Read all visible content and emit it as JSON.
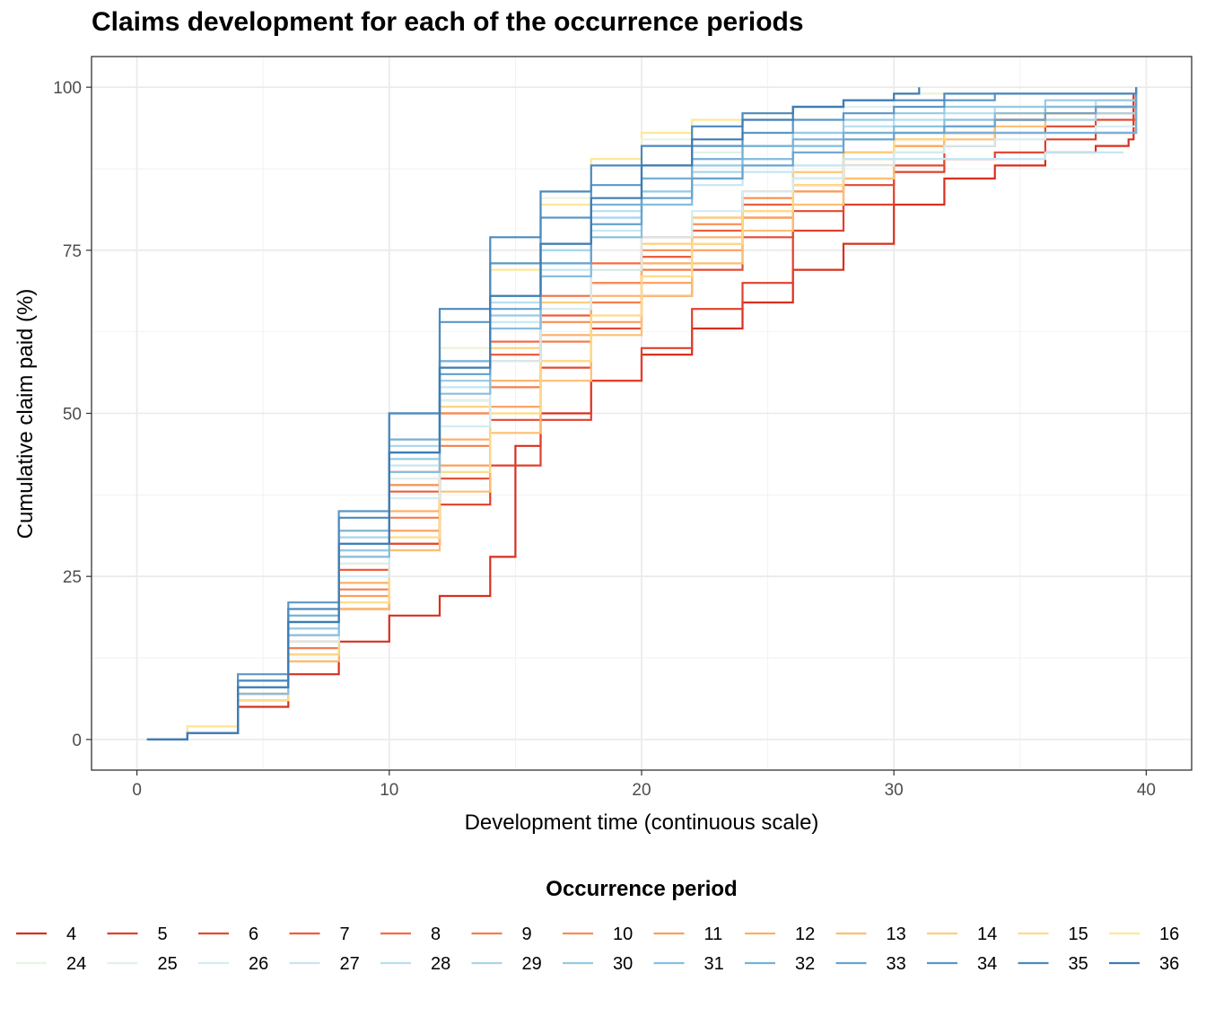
{
  "chart_data": {
    "type": "line",
    "title": "Claims development for each of the occurrence periods",
    "xlabel": "Development time (continuous scale)",
    "ylabel": "Cumulative claim paid (%)",
    "xlim": [
      -1.8,
      41.8
    ],
    "ylim": [
      -4.7,
      104.7
    ],
    "x_ticks": [
      0,
      10,
      20,
      30,
      40
    ],
    "y_ticks": [
      0,
      25,
      50,
      75,
      100
    ],
    "grid": true,
    "legend": {
      "title": "Occurrence period",
      "position": "bottom",
      "rows": [
        [
          "4",
          "5",
          "6",
          "7",
          "8",
          "9",
          "10",
          "11",
          "12",
          "13",
          "14",
          "15",
          "16"
        ],
        [
          "24",
          "25",
          "26",
          "27",
          "28",
          "29",
          "30",
          "31",
          "32",
          "33",
          "34",
          "35",
          "36"
        ]
      ]
    },
    "series": [
      {
        "name": "4",
        "color": "#d7301f",
        "x": [
          0.4,
          2,
          4,
          6,
          8,
          10,
          12,
          14,
          15,
          16,
          18,
          20,
          22,
          24,
          26,
          28,
          30,
          32,
          34,
          36,
          38,
          39.3,
          39.5
        ],
        "y": [
          0,
          1,
          5,
          10,
          15,
          19,
          22,
          28,
          45,
          50,
          55,
          59,
          63,
          67,
          72,
          76,
          82,
          86,
          88,
          90,
          91,
          92,
          99
        ]
      },
      {
        "name": "5",
        "color": "#e0402b",
        "x": [
          0.4,
          2,
          4,
          6,
          8,
          10,
          12,
          14,
          16,
          18,
          20,
          22,
          24,
          26,
          28,
          30,
          32,
          34,
          36,
          38,
          39.3,
          39.6
        ],
        "y": [
          0,
          1,
          6,
          12,
          20,
          30,
          36,
          42,
          49,
          55,
          60,
          66,
          70,
          78,
          82,
          87,
          89,
          90,
          92,
          93,
          93,
          100
        ]
      },
      {
        "name": "6",
        "color": "#e34a33",
        "x": [
          0.4,
          2,
          4,
          6,
          8,
          10,
          12,
          14,
          16,
          18,
          20,
          22,
          24,
          26,
          28,
          30,
          32,
          34,
          36,
          38,
          39.3,
          39.6
        ],
        "y": [
          0,
          1,
          6,
          13,
          20,
          30,
          40,
          49,
          57,
          63,
          68,
          72,
          77,
          81,
          85,
          88,
          91,
          93,
          94,
          95,
          95,
          100
        ]
      },
      {
        "name": "7",
        "color": "#ec5e3d",
        "x": [
          0.4,
          2,
          4,
          6,
          8,
          10,
          12,
          14,
          16,
          18,
          20,
          22,
          24,
          26,
          28,
          30,
          32,
          34,
          36,
          38,
          39.3,
          39.6
        ],
        "y": [
          0,
          1,
          7,
          15,
          26,
          38,
          50,
          59,
          65,
          70,
          74,
          78,
          82,
          85,
          88,
          91,
          93,
          95,
          96,
          96,
          96,
          100
        ]
      },
      {
        "name": "8",
        "color": "#f46d43",
        "x": [
          0.4,
          2,
          4,
          6,
          8,
          10,
          12,
          14,
          16,
          18,
          20,
          22,
          24,
          26,
          28,
          30,
          32,
          34,
          36,
          38,
          39.3,
          39.6
        ],
        "y": [
          0,
          1,
          8,
          17,
          29,
          41,
          52,
          61,
          68,
          73,
          77,
          80,
          84,
          87,
          90,
          92,
          94,
          95,
          96,
          97,
          97,
          100
        ]
      },
      {
        "name": "9",
        "color": "#f67e4b",
        "x": [
          0.4,
          2,
          4,
          6,
          8,
          10,
          12,
          14,
          16,
          18,
          20,
          22,
          24,
          26,
          28,
          30,
          32,
          34,
          36,
          38,
          39.3,
          39.6
        ],
        "y": [
          0,
          1,
          7,
          14,
          23,
          34,
          45,
          54,
          61,
          67,
          72,
          76,
          80,
          84,
          88,
          91,
          93,
          95,
          96,
          97,
          97,
          100
        ]
      },
      {
        "name": "10",
        "color": "#f88e53",
        "x": [
          0.4,
          2,
          4,
          6,
          8,
          10,
          12,
          14,
          16,
          18,
          20,
          22,
          24,
          26,
          28,
          30,
          32,
          34,
          36,
          38,
          39.3,
          39.6
        ],
        "y": [
          0,
          1,
          7,
          16,
          27,
          39,
          50,
          58,
          64,
          70,
          75,
          79,
          83,
          86,
          89,
          92,
          94,
          95,
          96,
          97,
          97,
          100
        ]
      },
      {
        "name": "11",
        "color": "#fa9f5c",
        "x": [
          0.4,
          2,
          4,
          6,
          8,
          10,
          12,
          14,
          16,
          18,
          20,
          22,
          24,
          26,
          28,
          30,
          32,
          34,
          36,
          38,
          39.3,
          39.6
        ],
        "y": [
          0,
          1,
          6,
          13,
          22,
          32,
          42,
          51,
          58,
          64,
          70,
          75,
          80,
          84,
          88,
          91,
          93,
          95,
          96,
          97,
          97,
          100
        ]
      },
      {
        "name": "12",
        "color": "#fcaf66",
        "x": [
          0.4,
          2,
          4,
          6,
          8,
          10,
          12,
          14,
          16,
          18,
          20,
          22,
          24,
          26,
          28,
          30,
          32,
          34,
          36,
          38,
          39.3,
          39.6
        ],
        "y": [
          0,
          1,
          7,
          15,
          24,
          35,
          46,
          55,
          62,
          68,
          73,
          77,
          81,
          85,
          88,
          91,
          93,
          95,
          96,
          97,
          97,
          100
        ]
      },
      {
        "name": "13",
        "color": "#fdbf71",
        "x": [
          0.4,
          2,
          4,
          6,
          8,
          10,
          12,
          14,
          16,
          18,
          20,
          22,
          24,
          26,
          28,
          30,
          32,
          34,
          36,
          38,
          39.3,
          39.6
        ],
        "y": [
          0,
          1,
          6,
          12,
          20,
          29,
          38,
          47,
          55,
          62,
          68,
          73,
          78,
          82,
          86,
          90,
          92,
          94,
          95,
          96,
          96,
          100
        ]
      },
      {
        "name": "14",
        "color": "#fecf7c",
        "x": [
          0.4,
          2,
          4,
          6,
          8,
          10,
          12,
          14,
          16,
          18,
          20,
          22,
          24,
          26,
          28,
          30,
          32,
          34,
          36,
          38,
          39.3,
          39.6
        ],
        "y": [
          0,
          2,
          8,
          17,
          28,
          40,
          51,
          60,
          67,
          72,
          76,
          80,
          84,
          87,
          90,
          92,
          94,
          96,
          97,
          98,
          98,
          100
        ]
      },
      {
        "name": "15",
        "color": "#fedb88",
        "x": [
          0.4,
          2,
          4,
          6,
          8,
          10,
          12,
          14,
          16,
          18,
          20,
          22,
          24,
          26,
          28,
          30,
          32,
          34,
          36,
          38,
          39.3,
          39.6
        ],
        "y": [
          0,
          1,
          6,
          13,
          21,
          31,
          41,
          50,
          58,
          65,
          71,
          76,
          81,
          85,
          89,
          92,
          94,
          96,
          97,
          98,
          98,
          100
        ]
      },
      {
        "name": "16",
        "color": "#fee797",
        "x": [
          0.4,
          2,
          4,
          6,
          8,
          10,
          12,
          14,
          16,
          18,
          20,
          22,
          24,
          26,
          28,
          30,
          32,
          34,
          36,
          38,
          39.3,
          39.6
        ],
        "y": [
          0,
          2,
          9,
          19,
          32,
          46,
          60,
          72,
          82,
          89,
          93,
          95,
          96,
          97,
          98,
          99,
          99,
          99,
          99,
          99,
          99,
          100
        ]
      },
      {
        "name": "24",
        "color": "#e9f5e0",
        "x": [
          0.4,
          2,
          4,
          6,
          8,
          10,
          12,
          14,
          16,
          18,
          20,
          22,
          24,
          26,
          28,
          30,
          32,
          34,
          36,
          38,
          39.3,
          39.6
        ],
        "y": [
          0,
          1,
          8,
          18,
          31,
          46,
          60,
          73,
          83,
          88,
          92,
          94,
          96,
          97,
          98,
          99,
          99,
          99,
          99,
          99,
          99,
          100
        ]
      },
      {
        "name": "25",
        "color": "#e0f1ed",
        "x": [
          0.4,
          2,
          4,
          6,
          8,
          10,
          12,
          14,
          16,
          18,
          20,
          22,
          24,
          26,
          28,
          30,
          32,
          34,
          36,
          38,
          39.3,
          39.6
        ],
        "y": [
          0,
          1,
          7,
          16,
          27,
          40,
          52,
          63,
          72,
          80,
          86,
          90,
          93,
          95,
          97,
          98,
          98,
          99,
          99,
          99,
          99,
          100
        ]
      },
      {
        "name": "26",
        "color": "#d4ecf2",
        "x": [
          0.4,
          2,
          4,
          6,
          8,
          10,
          12,
          14,
          16,
          18,
          20,
          22,
          24,
          26,
          28,
          30,
          32,
          34,
          36,
          38,
          39.3,
          39.6
        ],
        "y": [
          0,
          1,
          7,
          15,
          25,
          37,
          48,
          58,
          66,
          72,
          77,
          81,
          84,
          86,
          88,
          90,
          91,
          92,
          93,
          94,
          94,
          100
        ]
      },
      {
        "name": "27",
        "color": "#c6e6f2",
        "x": [
          0.4,
          2,
          4,
          6,
          8,
          10,
          12,
          14,
          16,
          18,
          20,
          22,
          24,
          26,
          28,
          30,
          32,
          34,
          36,
          38,
          39.1
        ],
        "y": [
          0,
          1,
          8,
          17,
          29,
          42,
          54,
          64,
          72,
          78,
          82,
          85,
          87,
          88,
          89,
          89,
          89,
          89,
          90,
          90,
          90
        ]
      },
      {
        "name": "28",
        "color": "#b8def0",
        "x": [
          0.4,
          2,
          4,
          6,
          8,
          10,
          12,
          14,
          16,
          18,
          20,
          22,
          24,
          26,
          28,
          30,
          32,
          34,
          36,
          38,
          39.3,
          39.6
        ],
        "y": [
          0,
          1,
          8,
          18,
          30,
          44,
          57,
          67,
          75,
          81,
          86,
          89,
          91,
          93,
          94,
          95,
          96,
          97,
          97,
          98,
          98,
          100
        ]
      },
      {
        "name": "29",
        "color": "#a8d5eb",
        "x": [
          0.4,
          2,
          4,
          6,
          8,
          10,
          12,
          14,
          16,
          18,
          20,
          22,
          24,
          26,
          28,
          30,
          32,
          34,
          36,
          38,
          39.3,
          39.6
        ],
        "y": [
          0,
          1,
          9,
          19,
          31,
          45,
          58,
          68,
          75,
          80,
          84,
          87,
          89,
          91,
          92,
          93,
          94,
          95,
          95,
          96,
          96,
          100
        ]
      },
      {
        "name": "30",
        "color": "#98cae4",
        "x": [
          0.4,
          2,
          4,
          6,
          8,
          10,
          12,
          14,
          16,
          18,
          20,
          22,
          24,
          26,
          28,
          30,
          32,
          34,
          36,
          38,
          39.3,
          39.6
        ],
        "y": [
          0,
          1,
          8,
          17,
          29,
          43,
          55,
          65,
          73,
          79,
          84,
          88,
          91,
          93,
          95,
          96,
          97,
          97,
          98,
          98,
          98,
          100
        ]
      },
      {
        "name": "31",
        "color": "#88bede",
        "x": [
          0.4,
          2,
          4,
          6,
          8,
          10,
          12,
          14,
          16,
          18,
          20,
          22,
          24,
          26,
          28,
          30,
          32,
          34,
          36,
          38,
          39.3,
          39.6
        ],
        "y": [
          0,
          1,
          7,
          16,
          28,
          41,
          53,
          63,
          71,
          77,
          82,
          86,
          89,
          91,
          93,
          94,
          95,
          96,
          97,
          97,
          97,
          100
        ]
      },
      {
        "name": "32",
        "color": "#78b1d7",
        "x": [
          0.4,
          2,
          4,
          6,
          8,
          10,
          12,
          14,
          16,
          18,
          20,
          22,
          24,
          26,
          28,
          30,
          32,
          34,
          36,
          38,
          39.3,
          39.6
        ],
        "y": [
          0,
          1,
          9,
          19,
          32,
          46,
          58,
          68,
          76,
          82,
          86,
          89,
          91,
          92,
          93,
          93,
          93,
          93,
          93,
          93,
          93,
          100
        ]
      },
      {
        "name": "33",
        "color": "#69a4cf",
        "x": [
          0.4,
          2,
          4,
          6,
          8,
          10,
          12,
          14,
          16,
          18,
          20,
          22,
          24,
          26,
          28,
          30,
          32,
          34,
          36,
          38,
          39.3,
          39.6
        ],
        "y": [
          0,
          1,
          8,
          18,
          30,
          44,
          56,
          66,
          73,
          79,
          83,
          86,
          88,
          90,
          92,
          93,
          94,
          95,
          96,
          97,
          97,
          100
        ]
      },
      {
        "name": "34",
        "color": "#5b97c6",
        "x": [
          0.4,
          2,
          4,
          6,
          8,
          10,
          12,
          14,
          16,
          18,
          20,
          22,
          24,
          26,
          28,
          30,
          32,
          34,
          36,
          38,
          39.3,
          39.6
        ],
        "y": [
          0,
          1,
          10,
          21,
          35,
          50,
          64,
          73,
          80,
          85,
          88,
          91,
          93,
          95,
          96,
          97,
          98,
          99,
          99,
          99,
          99,
          100
        ]
      },
      {
        "name": "35",
        "color": "#4d8abe",
        "x": [
          0.4,
          2,
          4,
          6,
          8,
          10,
          12,
          14,
          16,
          18,
          20,
          22,
          24,
          26,
          28,
          30,
          32,
          34,
          36,
          38,
          39.3,
          39.6
        ],
        "y": [
          0,
          1,
          9,
          20,
          34,
          50,
          66,
          77,
          84,
          88,
          91,
          94,
          96,
          97,
          98,
          98,
          99,
          99,
          99,
          99,
          99,
          100
        ]
      },
      {
        "name": "36",
        "color": "#3f7cb4",
        "x": [
          0.4,
          2,
          4,
          6,
          8,
          10,
          12,
          14,
          16,
          18,
          20,
          22,
          24,
          26,
          28,
          30,
          31
        ],
        "y": [
          0,
          1,
          8,
          18,
          30,
          44,
          57,
          68,
          76,
          83,
          88,
          92,
          95,
          97,
          98,
          99,
          100
        ]
      }
    ]
  }
}
